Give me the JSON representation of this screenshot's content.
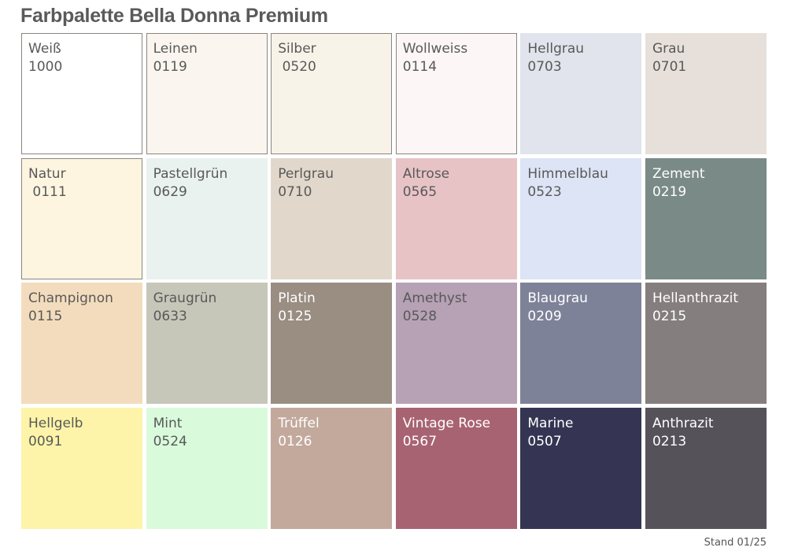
{
  "title": "Farbpalette Bella Donna Premium",
  "footer": "Stand 01/25",
  "colors": [
    {
      "name": "Weiß",
      "code": "1000",
      "hex": "#ffffff",
      "border": true,
      "text": "dark"
    },
    {
      "name": "Leinen",
      "code": "0119",
      "hex": "#faf6ef",
      "border": true,
      "text": "dark"
    },
    {
      "name": "Silber",
      "code": " 0520",
      "hex": "#f8f3e8",
      "border": true,
      "text": "dark"
    },
    {
      "name": "Wollweiss",
      "code": "0114",
      "hex": "#fcf6f6",
      "border": true,
      "text": "dark"
    },
    {
      "name": "Hellgrau",
      "code": "0703",
      "hex": "#e1e4ec",
      "border": false,
      "text": "dark"
    },
    {
      "name": "Grau",
      "code": "0701",
      "hex": "#e7e0da",
      "border": false,
      "text": "dark"
    },
    {
      "name": "Natur",
      "code": " 0111",
      "hex": "#fdf5e0",
      "border": true,
      "text": "dark"
    },
    {
      "name": "Pastellgrün",
      "code": "0629",
      "hex": "#e9f2ee",
      "border": false,
      "text": "dark"
    },
    {
      "name": "Perlgrau",
      "code": "0710",
      "hex": "#e1d8cb",
      "border": false,
      "text": "dark"
    },
    {
      "name": "Altrose",
      "code": "0565",
      "hex": "#e8c3c6",
      "border": false,
      "text": "dark"
    },
    {
      "name": "Himmelblau",
      "code": "0523",
      "hex": "#dce4f5",
      "border": false,
      "text": "dark"
    },
    {
      "name": "Zement",
      "code": "0219",
      "hex": "#7a8a87",
      "border": false,
      "text": "light"
    },
    {
      "name": "Champignon",
      "code": "0115",
      "hex": "#f3dcbd",
      "border": false,
      "text": "dark"
    },
    {
      "name": "Graugrün",
      "code": "0633",
      "hex": "#c6c7b9",
      "border": false,
      "text": "dark"
    },
    {
      "name": "Platin",
      "code": "0125",
      "hex": "#9a8d82",
      "border": false,
      "text": "light"
    },
    {
      "name": "Amethyst",
      "code": "0528",
      "hex": "#b6a1b5",
      "border": false,
      "text": "dark"
    },
    {
      "name": "Blaugrau",
      "code": "0209",
      "hex": "#7e8298",
      "border": false,
      "text": "light"
    },
    {
      "name": "Hellanthrazit",
      "code": "0215",
      "hex": "#857e7e",
      "border": false,
      "text": "light"
    },
    {
      "name": "Hellgelb",
      "code": "0091",
      "hex": "#fdf4a9",
      "border": false,
      "text": "dark"
    },
    {
      "name": "Mint",
      "code": "0524",
      "hex": "#d9fbdc",
      "border": false,
      "text": "dark"
    },
    {
      "name": "Trüffel",
      "code": "0126",
      "hex": "#c2a99c",
      "border": false,
      "text": "light"
    },
    {
      "name": "Vintage Rose",
      "code": "0567",
      "hex": "#a86372",
      "border": false,
      "text": "light"
    },
    {
      "name": "Marine",
      "code": "0507",
      "hex": "#353553",
      "border": false,
      "text": "light"
    },
    {
      "name": "Anthrazit",
      "code": "0213",
      "hex": "#56525a",
      "border": false,
      "text": "light"
    }
  ]
}
